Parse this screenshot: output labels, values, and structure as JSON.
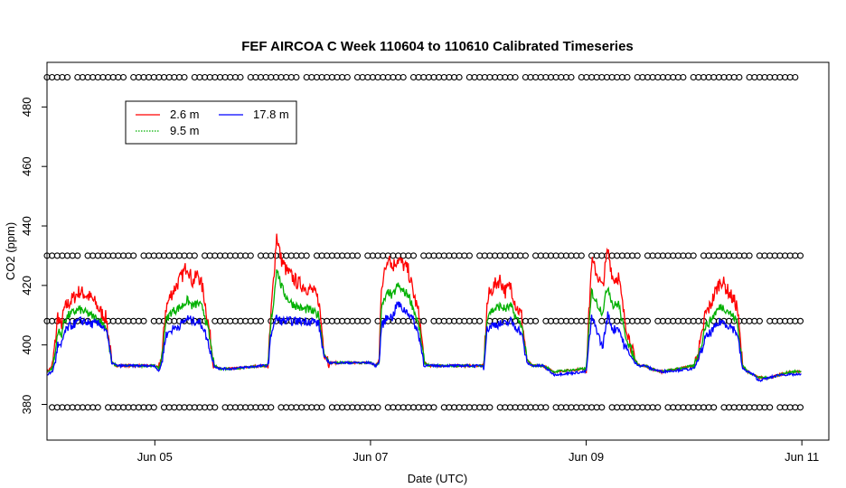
{
  "chart_data": {
    "type": "line",
    "title": "FEF AIRCOA C  Week 110604 to 110610  Calibrated Timeseries",
    "xlabel": "Date (UTC)",
    "ylabel": "CO2 (ppm)",
    "xlim": [
      0,
      7.25
    ],
    "ylim": [
      368,
      495
    ],
    "x_ticks": [
      {
        "label": "Jun 05",
        "value": 1.0
      },
      {
        "label": "Jun 07",
        "value": 3.0
      },
      {
        "label": "Jun 09",
        "value": 5.0
      },
      {
        "label": "Jun 11",
        "value": 7.0
      }
    ],
    "y_ticks": [
      380,
      400,
      420,
      440,
      460,
      480
    ],
    "legend": {
      "placement": "top-left",
      "entries": [
        {
          "name": "2.6 m",
          "color": "#ff0000",
          "style": "solid"
        },
        {
          "name": "9.5 m",
          "color": "#00b000",
          "style": "dotted"
        },
        {
          "name": "17.8 m",
          "color": "#0000ff",
          "style": "solid"
        }
      ]
    },
    "series": [
      {
        "name": "2.6 m",
        "color": "#ff0000",
        "x": [
          0.0,
          0.05,
          0.08,
          0.1,
          0.13,
          0.16,
          0.2,
          0.25,
          0.3,
          0.35,
          0.4,
          0.45,
          0.5,
          0.55,
          0.6,
          0.65,
          0.7,
          1.0,
          1.04,
          1.07,
          1.1,
          1.15,
          1.2,
          1.25,
          1.3,
          1.35,
          1.4,
          1.45,
          1.5,
          1.55,
          1.6,
          1.65,
          1.7,
          2.0,
          2.05,
          2.08,
          2.1,
          2.13,
          2.17,
          2.22,
          2.27,
          2.32,
          2.37,
          2.42,
          2.47,
          2.52,
          2.57,
          2.62,
          2.7,
          3.0,
          3.05,
          3.08,
          3.1,
          3.13,
          3.17,
          3.2,
          3.25,
          3.3,
          3.35,
          3.4,
          3.45,
          3.5,
          3.55,
          3.6,
          3.7,
          4.0,
          4.05,
          4.08,
          4.1,
          4.15,
          4.2,
          4.25,
          4.3,
          4.35,
          4.4,
          4.45,
          4.5,
          4.55,
          4.6,
          4.7,
          5.0,
          5.05,
          5.1,
          5.15,
          5.2,
          5.25,
          5.3,
          5.35,
          5.4,
          5.45,
          5.5,
          5.55,
          5.6,
          5.7,
          6.0,
          6.05,
          6.08,
          6.1,
          6.15,
          6.2,
          6.25,
          6.3,
          6.35,
          6.4,
          6.45,
          6.5,
          6.55,
          6.6,
          6.7,
          6.8,
          6.9,
          7.0
        ],
        "values": [
          391,
          393,
          402,
          410,
          406,
          412,
          414,
          416,
          418,
          417,
          416,
          414,
          411,
          409,
          394,
          393,
          393,
          393,
          392,
          398,
          412,
          417,
          420,
          423,
          427,
          421,
          424,
          418,
          406,
          393,
          392,
          392,
          392,
          393,
          393,
          412,
          422,
          437,
          429,
          425,
          423,
          421,
          420,
          419,
          418,
          415,
          398,
          394,
          394,
          394,
          393,
          395,
          420,
          424,
          431,
          426,
          429,
          427,
          425,
          417,
          410,
          394,
          393,
          393,
          393,
          393,
          393,
          413,
          417,
          420,
          422,
          418,
          420,
          413,
          410,
          395,
          393,
          393,
          393,
          391,
          392,
          428,
          424,
          419,
          432,
          422,
          423,
          410,
          402,
          395,
          393,
          393,
          392,
          391,
          393,
          399,
          404,
          410,
          413,
          418,
          422,
          419,
          416,
          413,
          393,
          391,
          390,
          389,
          389,
          390,
          391,
          391
        ]
      },
      {
        "name": "9.5 m",
        "color": "#00b000",
        "x": [
          0.0,
          0.05,
          0.08,
          0.1,
          0.13,
          0.16,
          0.2,
          0.25,
          0.3,
          0.35,
          0.4,
          0.45,
          0.5,
          0.55,
          0.6,
          0.65,
          0.7,
          1.0,
          1.04,
          1.07,
          1.1,
          1.15,
          1.2,
          1.25,
          1.3,
          1.35,
          1.4,
          1.45,
          1.5,
          1.55,
          1.6,
          1.65,
          1.7,
          2.0,
          2.05,
          2.08,
          2.1,
          2.13,
          2.17,
          2.22,
          2.27,
          2.32,
          2.37,
          2.42,
          2.47,
          2.52,
          2.57,
          2.62,
          2.7,
          3.0,
          3.05,
          3.08,
          3.1,
          3.13,
          3.17,
          3.2,
          3.25,
          3.3,
          3.35,
          3.4,
          3.45,
          3.5,
          3.55,
          3.6,
          3.7,
          4.0,
          4.05,
          4.08,
          4.1,
          4.15,
          4.2,
          4.25,
          4.3,
          4.35,
          4.4,
          4.45,
          4.5,
          4.55,
          4.6,
          4.7,
          5.0,
          5.05,
          5.1,
          5.15,
          5.2,
          5.25,
          5.3,
          5.35,
          5.4,
          5.45,
          5.5,
          5.55,
          5.6,
          5.7,
          6.0,
          6.05,
          6.08,
          6.1,
          6.15,
          6.2,
          6.25,
          6.3,
          6.35,
          6.4,
          6.45,
          6.5,
          6.55,
          6.6,
          6.7,
          6.8,
          6.9,
          7.0
        ],
        "values": [
          391,
          392,
          398,
          405,
          403,
          408,
          410,
          411,
          412,
          411,
          410,
          409,
          408,
          406,
          394,
          393,
          393,
          393,
          392,
          397,
          408,
          411,
          412,
          413,
          415,
          413,
          414,
          412,
          404,
          393,
          392,
          392,
          392,
          393,
          393,
          409,
          414,
          426,
          420,
          416,
          414,
          413,
          412,
          412,
          411,
          410,
          397,
          394,
          394,
          394,
          393,
          394,
          412,
          415,
          418,
          416,
          420,
          418,
          417,
          412,
          406,
          394,
          393,
          393,
          393,
          393,
          393,
          409,
          411,
          412,
          413,
          412,
          413,
          409,
          407,
          395,
          393,
          393,
          393,
          391,
          392,
          418,
          414,
          411,
          420,
          413,
          414,
          405,
          400,
          395,
          393,
          393,
          392,
          391,
          393,
          398,
          402,
          406,
          408,
          411,
          413,
          412,
          410,
          408,
          393,
          391,
          390,
          389,
          389,
          390,
          391,
          391
        ]
      },
      {
        "name": "17.8 m",
        "color": "#0000ff",
        "x": [
          0.0,
          0.05,
          0.08,
          0.1,
          0.13,
          0.16,
          0.2,
          0.25,
          0.3,
          0.35,
          0.4,
          0.45,
          0.5,
          0.55,
          0.6,
          0.65,
          0.7,
          1.0,
          1.04,
          1.07,
          1.1,
          1.15,
          1.2,
          1.25,
          1.3,
          1.35,
          1.4,
          1.45,
          1.5,
          1.55,
          1.6,
          1.65,
          1.7,
          2.0,
          2.05,
          2.08,
          2.1,
          2.13,
          2.17,
          2.22,
          2.27,
          2.32,
          2.37,
          2.42,
          2.47,
          2.52,
          2.57,
          2.62,
          2.7,
          3.0,
          3.05,
          3.08,
          3.1,
          3.13,
          3.17,
          3.2,
          3.25,
          3.3,
          3.35,
          3.4,
          3.45,
          3.5,
          3.55,
          3.6,
          3.7,
          4.0,
          4.05,
          4.08,
          4.1,
          4.15,
          4.2,
          4.25,
          4.3,
          4.35,
          4.4,
          4.45,
          4.5,
          4.55,
          4.6,
          4.7,
          5.0,
          5.05,
          5.1,
          5.15,
          5.2,
          5.25,
          5.3,
          5.35,
          5.4,
          5.45,
          5.5,
          5.55,
          5.6,
          5.7,
          6.0,
          6.05,
          6.08,
          6.1,
          6.15,
          6.2,
          6.25,
          6.3,
          6.35,
          6.4,
          6.45,
          6.5,
          6.55,
          6.6,
          6.7,
          6.8,
          6.9,
          7.0
        ],
        "values": [
          390,
          391,
          395,
          400,
          399,
          404,
          406,
          407,
          408,
          408,
          407,
          407,
          407,
          405,
          394,
          393,
          393,
          393,
          391,
          395,
          403,
          405,
          406,
          407,
          409,
          408,
          408,
          406,
          400,
          393,
          392,
          392,
          392,
          393,
          393,
          404,
          407,
          409,
          408,
          408,
          408,
          408,
          408,
          408,
          408,
          407,
          396,
          394,
          394,
          394,
          393,
          394,
          406,
          408,
          410,
          409,
          414,
          412,
          411,
          408,
          403,
          393,
          393,
          393,
          393,
          393,
          393,
          405,
          406,
          407,
          407,
          407,
          408,
          406,
          404,
          394,
          393,
          393,
          393,
          390,
          391,
          409,
          405,
          399,
          410,
          405,
          406,
          400,
          397,
          394,
          393,
          393,
          392,
          391,
          392,
          396,
          399,
          402,
          404,
          406,
          408,
          407,
          406,
          404,
          392,
          391,
          390,
          388,
          389,
          390,
          390,
          390
        ]
      }
    ],
    "reference_levels": {
      "name": "reference tank markers",
      "values": [
        379,
        408,
        430,
        490
      ],
      "marker": "open-circle",
      "color": "#000000"
    }
  }
}
